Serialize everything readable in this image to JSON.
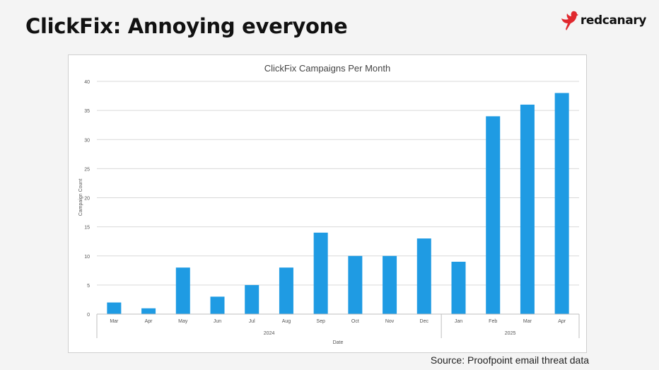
{
  "slide": {
    "title": "ClickFix: Annoying everyone",
    "logo_text": "redcanary",
    "source": "Source: Proofpoint email threat data"
  },
  "colors": {
    "bar": "#1f9be3",
    "logo": "#e0282e"
  },
  "chart_data": {
    "type": "bar",
    "title": "ClickFix Campaigns Per Month",
    "xlabel": "Date",
    "ylabel": "Campaign Count",
    "categories": [
      "Mar",
      "Apr",
      "May",
      "Jun",
      "Jul",
      "Aug",
      "Sep",
      "Oct",
      "Nov",
      "Dec",
      "Jan",
      "Feb",
      "Mar",
      "Apr"
    ],
    "groups": [
      {
        "label": "2024",
        "start": 0,
        "end": 9
      },
      {
        "label": "2025",
        "start": 10,
        "end": 13
      }
    ],
    "values": [
      2,
      1,
      8,
      3,
      5,
      8,
      14,
      10,
      10,
      13,
      9,
      34,
      36,
      38
    ],
    "ylim": [
      0,
      40
    ],
    "yticks": [
      0,
      5,
      10,
      15,
      20,
      25,
      30,
      35,
      40
    ],
    "grid": true
  }
}
